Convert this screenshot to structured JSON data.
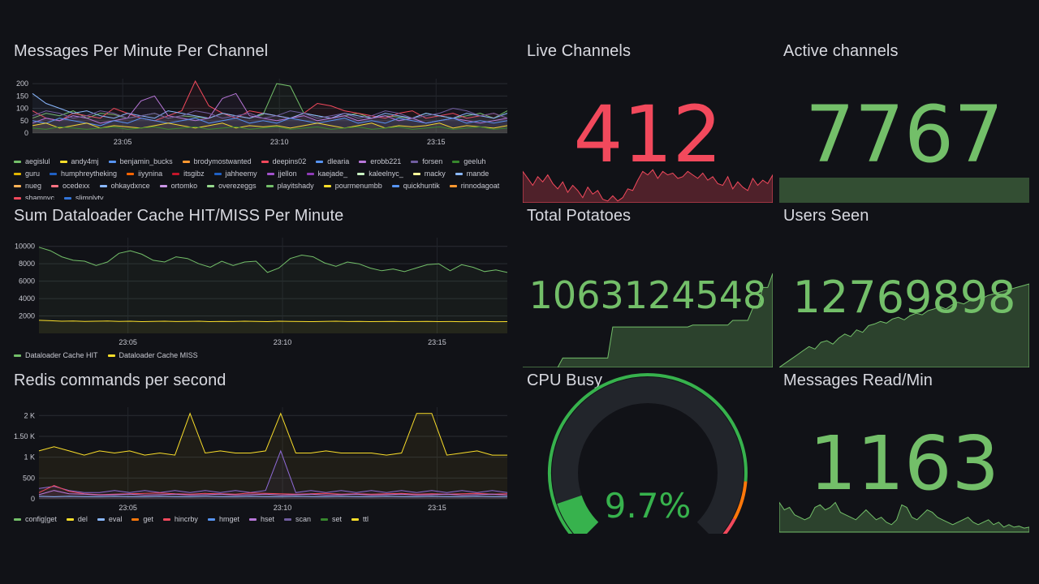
{
  "colors": {
    "background": "#111217",
    "green": "#73bf69",
    "red": "#f2495c",
    "yellow": "#fade2a",
    "purple": "#8f6bd8",
    "orange": "#ff780a",
    "blue": "#5794f2"
  },
  "panels": {
    "messages_per_minute": {
      "title": "Messages Per Minute Per Channel",
      "legend": [
        "aegislul",
        "andy4mj",
        "benjamin_bucks",
        "brodymostwanted",
        "deepins02",
        "dlearia",
        "erobb221",
        "forsen",
        "geeluh",
        "guru",
        "humphreytheking",
        "iiyynina",
        "itsgibz",
        "jahheemy",
        "jjellon",
        "kaejade_",
        "kaleelnyc_",
        "macky",
        "mande",
        "nueg",
        "ocedexx",
        "ohkaydxnce",
        "ortomko",
        "overezeggs",
        "playitshady",
        "pourmenumbb",
        "quickhuntik",
        "rinnodagoat",
        "shamnyc",
        "slimplyty"
      ],
      "legend_colors": [
        "#73bf69",
        "#fade2a",
        "#5794f2",
        "#ff9830",
        "#f2495c",
        "#5794f2",
        "#b877d9",
        "#705da0",
        "#37872d",
        "#e0b400",
        "#1f60c4",
        "#fa6400",
        "#c4162a",
        "#1f60c4",
        "#a352cc",
        "#8f3bb8",
        "#c8f2c2",
        "#fff899",
        "#8ab8ff",
        "#ffb357",
        "#ff7383",
        "#8ab8ff",
        "#ca95e5",
        "#96d98d",
        "#73bf69",
        "#fade2a",
        "#5794f2",
        "#ff9830",
        "#f2495c",
        "#3274d9"
      ]
    },
    "dataloader": {
      "title": "Sum Dataloader Cache HIT/MISS Per Minute",
      "legend": [
        "Dataloader Cache HIT",
        "Dataloader Cache MISS"
      ]
    },
    "redis": {
      "title": "Redis commands per second",
      "legend": [
        "config|get",
        "del",
        "eval",
        "get",
        "hincrby",
        "hmget",
        "hset",
        "scan",
        "set",
        "ttl"
      ],
      "legend_colors": [
        "#73bf69",
        "#fade2a",
        "#8ab8ff",
        "#ff780a",
        "#f2495c",
        "#5794f2",
        "#b877d9",
        "#705da0",
        "#37872d",
        "#fade2a"
      ]
    },
    "live_channels": {
      "title": "Live Channels",
      "value": "412"
    },
    "active_channels": {
      "title": "Active channels",
      "value": "7767"
    },
    "total_potatoes": {
      "title": "Total Potatoes",
      "value": "1063124548"
    },
    "users_seen": {
      "title": "Users Seen",
      "value": "12769898"
    },
    "cpu_busy": {
      "title": "CPU Busy",
      "value": "9.7%",
      "fraction": 0.097
    },
    "messages_read": {
      "title": "Messages Read/Min",
      "value": "1163"
    }
  },
  "chart_data": [
    {
      "type": "line",
      "id": "messages_per_minute",
      "title": "Messages Per Minute Per Channel",
      "xlabel": "",
      "ylabel": "",
      "x_ticks": [
        "23:05",
        "23:10",
        "23:15"
      ],
      "y_ticks": [
        0,
        50,
        100,
        150,
        200
      ],
      "ylim": [
        0,
        220
      ],
      "series": [
        {
          "name": "aegislul",
          "values": [
            60,
            80,
            70,
            90,
            60,
            80,
            75,
            60,
            70,
            80,
            60,
            70,
            65,
            60,
            80,
            70,
            60,
            75,
            200,
            190,
            80,
            70,
            60,
            70,
            80,
            60,
            70,
            65,
            60,
            80,
            70,
            60,
            70,
            80,
            60,
            90
          ]
        },
        {
          "name": "deepins02",
          "values": [
            90,
            60,
            50,
            80,
            70,
            60,
            100,
            80,
            60,
            50,
            70,
            90,
            210,
            110,
            80,
            60,
            90,
            80,
            70,
            60,
            80,
            120,
            110,
            90,
            80,
            70,
            60,
            80,
            90,
            60,
            70,
            80,
            60,
            70,
            80,
            60
          ]
        },
        {
          "name": "dlearia",
          "values": [
            160,
            120,
            100,
            80,
            90,
            70,
            60,
            80,
            70,
            60,
            90,
            80,
            70,
            60,
            80,
            70,
            60,
            80,
            70,
            60,
            80,
            70,
            60,
            80,
            70,
            60,
            80,
            70,
            60,
            80,
            70,
            60,
            80,
            70,
            60,
            80
          ]
        },
        {
          "name": "erobb221",
          "values": [
            40,
            60,
            50,
            70,
            60,
            40,
            50,
            60,
            130,
            150,
            70,
            60,
            50,
            60,
            140,
            160,
            70,
            60,
            50,
            60,
            70,
            50,
            60,
            70,
            50,
            60,
            70,
            50,
            60,
            40,
            50,
            60,
            50,
            40,
            50,
            60
          ]
        },
        {
          "name": "benjamin_bucks",
          "values": [
            50,
            40,
            60,
            50,
            40,
            30,
            50,
            40,
            60,
            50,
            40,
            50,
            60,
            40,
            50,
            60,
            40,
            50,
            40,
            60,
            50,
            40,
            50,
            60,
            40,
            50,
            40,
            60,
            50,
            40,
            50,
            60,
            40,
            50,
            40,
            50
          ]
        },
        {
          "name": "andy4mj",
          "values": [
            30,
            40,
            20,
            30,
            40,
            20,
            30,
            25,
            20,
            30,
            40,
            30,
            20,
            30,
            40,
            20,
            30,
            25,
            30,
            20,
            30,
            40,
            30,
            20,
            30,
            40,
            20,
            30,
            25,
            30,
            40,
            20,
            30,
            25,
            20,
            30
          ]
        },
        {
          "name": "forsen",
          "values": [
            70,
            90,
            80,
            60,
            70,
            90,
            80,
            60,
            70,
            80,
            60,
            70,
            90,
            80,
            60,
            70,
            80,
            60,
            70,
            90,
            80,
            60,
            70,
            80,
            60,
            70,
            90,
            80,
            60,
            70,
            80,
            100,
            90,
            70,
            80,
            60
          ]
        },
        {
          "name": "geeluh",
          "values": [
            20,
            15,
            25,
            20,
            15,
            20,
            25,
            15,
            20,
            25,
            15,
            20,
            25,
            15,
            20,
            25,
            15,
            20,
            25,
            15,
            20,
            25,
            15,
            20,
            25,
            15,
            20,
            25,
            15,
            20,
            25,
            15,
            20,
            25,
            15,
            20
          ]
        }
      ]
    },
    {
      "type": "line",
      "id": "dataloader",
      "title": "Sum Dataloader Cache HIT/MISS Per Minute",
      "xlabel": "",
      "ylabel": "",
      "x_ticks": [
        "23:05",
        "23:10",
        "23:15"
      ],
      "y_ticks": [
        2000,
        4000,
        6000,
        8000,
        10000
      ],
      "ylim": [
        0,
        11000
      ],
      "series": [
        {
          "name": "Dataloader Cache HIT",
          "values": [
            9900,
            9500,
            8800,
            8400,
            8300,
            7800,
            8200,
            9200,
            9500,
            9100,
            8400,
            8200,
            8800,
            8600,
            8000,
            7600,
            8300,
            7800,
            8200,
            8300,
            7000,
            7500,
            8600,
            9000,
            8800,
            8100,
            7700,
            8200,
            8000,
            7500,
            7200,
            7400,
            7100,
            7500,
            7900,
            8000,
            7200,
            7900,
            7600,
            7100,
            7300,
            7000
          ]
        },
        {
          "name": "Dataloader Cache MISS",
          "values": [
            1500,
            1450,
            1400,
            1420,
            1380,
            1400,
            1420,
            1380,
            1400,
            1350,
            1380,
            1400,
            1360,
            1380,
            1400,
            1350,
            1380,
            1360,
            1400,
            1380,
            1350,
            1400,
            1380,
            1360,
            1350,
            1380,
            1400,
            1360,
            1380,
            1350,
            1360,
            1380,
            1350,
            1360,
            1380,
            1350,
            1360,
            1340,
            1350,
            1360,
            1340,
            1350
          ]
        }
      ]
    },
    {
      "type": "line",
      "id": "redis",
      "title": "Redis commands per second",
      "xlabel": "",
      "ylabel": "",
      "x_ticks": [
        "23:05",
        "23:10",
        "23:15"
      ],
      "y_ticks": [
        "0",
        "500",
        "1 K",
        "1.50 K",
        "2 K"
      ],
      "ylim": [
        0,
        2200
      ],
      "series": [
        {
          "name": "ttl",
          "values": [
            1150,
            1250,
            1150,
            1050,
            1150,
            1100,
            1150,
            1050,
            1100,
            1050,
            2050,
            1100,
            1150,
            1100,
            1100,
            1150,
            2050,
            1100,
            1100,
            1150,
            1100,
            1100,
            1100,
            1050,
            1100,
            2050,
            2050,
            1050,
            1100,
            1150,
            1050,
            1050
          ]
        },
        {
          "name": "set",
          "values": [
            250,
            300,
            200,
            150,
            150,
            200,
            150,
            200,
            150,
            200,
            150,
            200,
            150,
            200,
            150,
            200,
            1150,
            150,
            200,
            150,
            200,
            150,
            200,
            150,
            200,
            150,
            200,
            150,
            200,
            150,
            200,
            150
          ]
        },
        {
          "name": "hincrby",
          "values": [
            150,
            320,
            180,
            120,
            100,
            110,
            120,
            130,
            140,
            120,
            110,
            130,
            120,
            110,
            140,
            130,
            120,
            110,
            120,
            130,
            110,
            120,
            110,
            120,
            130,
            110,
            120,
            110,
            120,
            130,
            110,
            120
          ]
        },
        {
          "name": "hset",
          "values": [
            100,
            200,
            120,
            110,
            90,
            100,
            110,
            90,
            100,
            110,
            90,
            100,
            110,
            90,
            100,
            110,
            90,
            100,
            110,
            90,
            100,
            110,
            90,
            100,
            110,
            90,
            100,
            110,
            90,
            100,
            110,
            90
          ]
        },
        {
          "name": "eval",
          "values": [
            60,
            50,
            60,
            55,
            50,
            60,
            55,
            50,
            60,
            55,
            50,
            60,
            55,
            50,
            60,
            55,
            50,
            60,
            55,
            50,
            60,
            55,
            50,
            60,
            55,
            50,
            60,
            55,
            50,
            60,
            55,
            50
          ]
        }
      ]
    }
  ]
}
